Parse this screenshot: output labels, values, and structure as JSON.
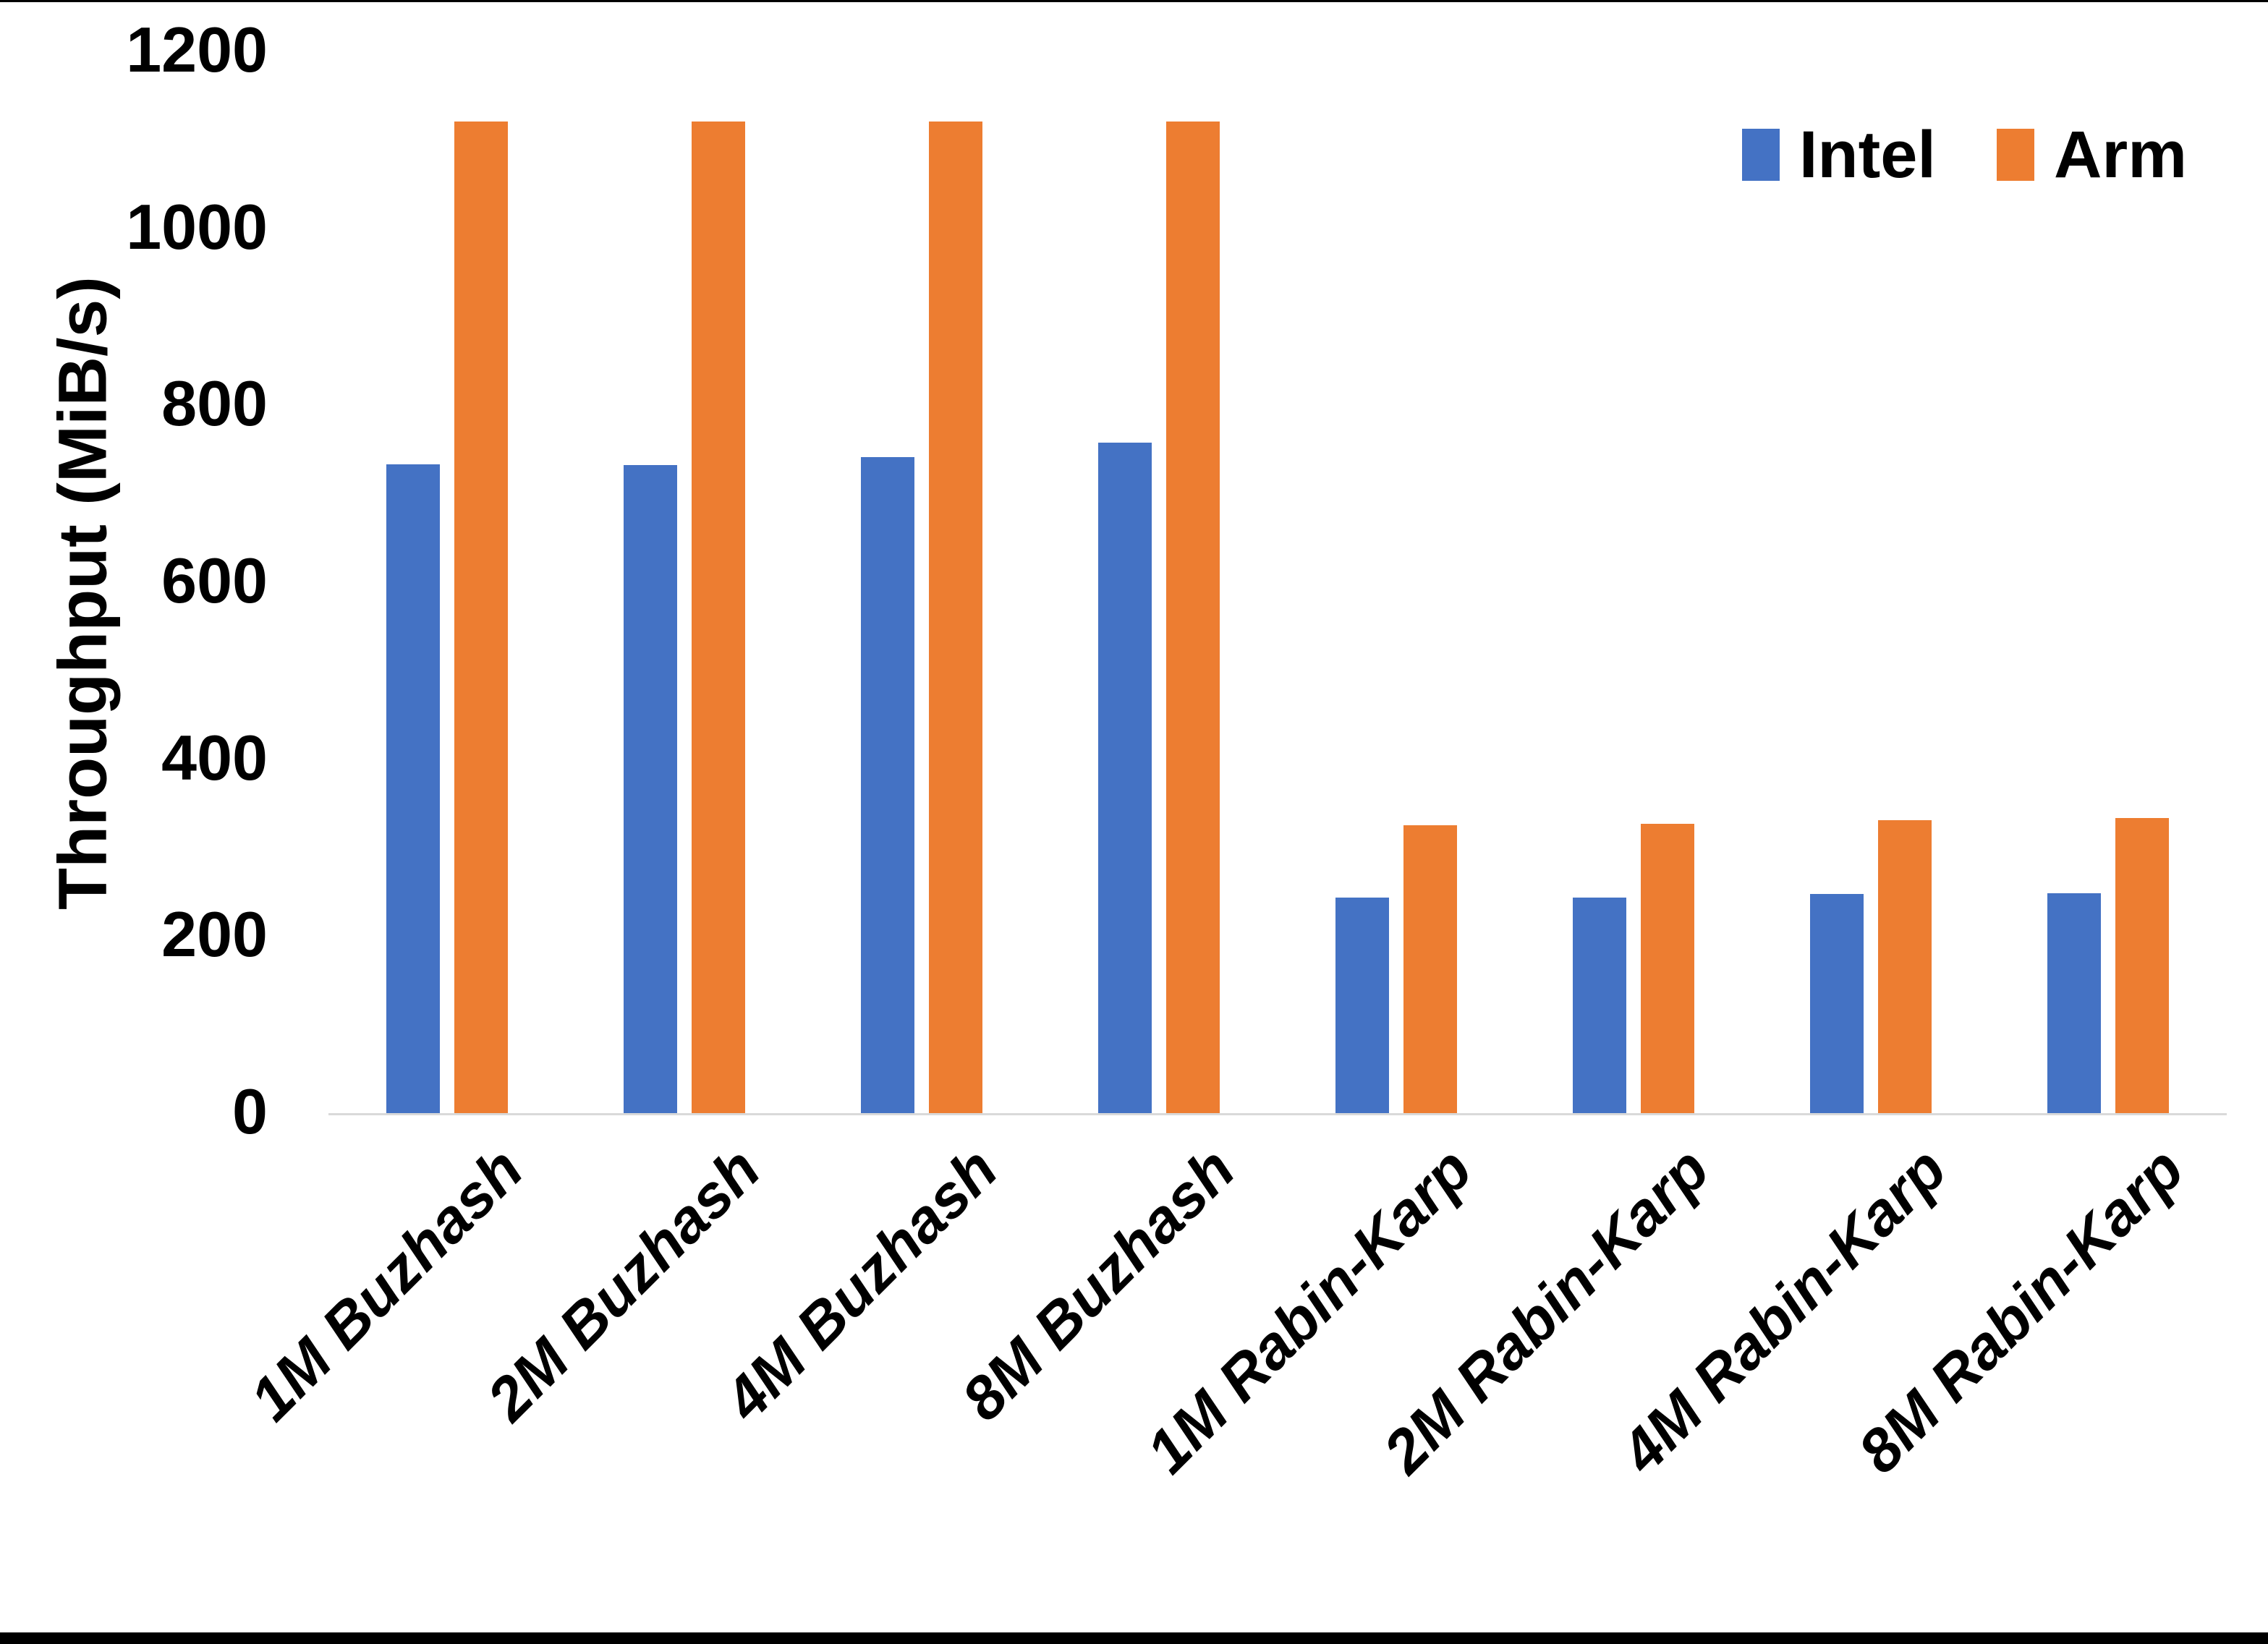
{
  "chart_data": {
    "type": "bar",
    "title": "",
    "ylabel": "Throughput (MiB/s)",
    "xlabel": "",
    "categories": [
      "1M Buzhash",
      "2M Buzhash",
      "4M Buzhash",
      "8M Buzhash",
      "1M Rabin-Karp",
      "2M Rabin-Karp",
      "4M Rabin-Karp",
      "8M Rabin-Karp"
    ],
    "series": [
      {
        "name": "Intel",
        "color": "#4472C4",
        "values": [
          735,
          734,
          743,
          759,
          245,
          245,
          249,
          250
        ]
      },
      {
        "name": "Arm",
        "color": "#ED7D31",
        "values": [
          1122,
          1122,
          1122,
          1122,
          327,
          329,
          333,
          335
        ]
      }
    ],
    "ylim": [
      0,
      1200
    ],
    "yticks": [
      0,
      200,
      400,
      600,
      800,
      1000,
      1200
    ],
    "grid": false,
    "legend_position": "top-right",
    "axis_line_color": "#D9D9D9",
    "text_color": "#000000",
    "category_label_style": "italic, rotated 45deg",
    "units": "MiB/s"
  }
}
